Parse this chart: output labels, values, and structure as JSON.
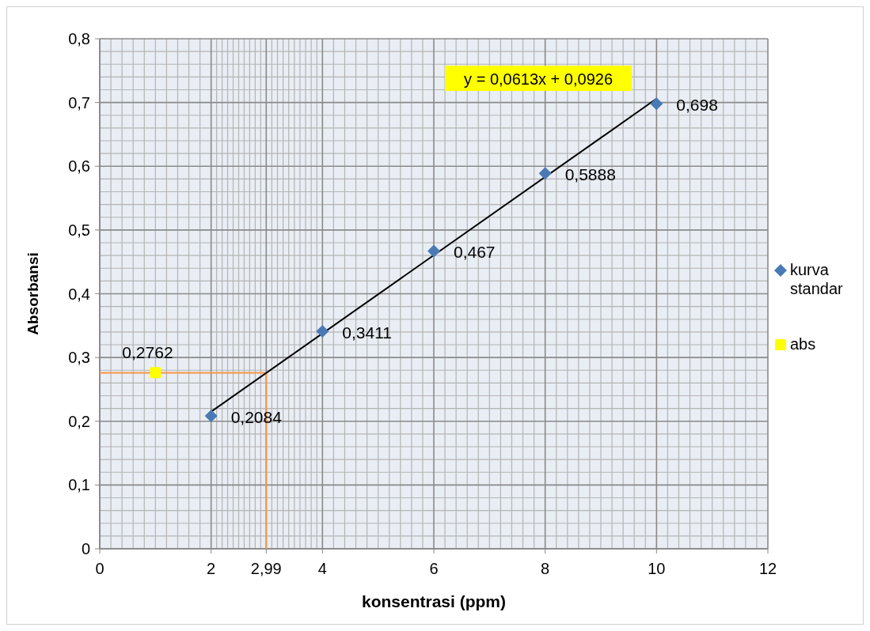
{
  "chart_data": {
    "type": "scatter",
    "xlabel": "konsentrasi (ppm)",
    "ylabel": "Absorbansi",
    "xlim": [
      0,
      12
    ],
    "xticks": [
      0,
      2,
      {
        "value": 2.99,
        "label": "2,99"
      },
      4,
      6,
      8,
      10,
      12
    ],
    "ylim": [
      0,
      0.8
    ],
    "yticks": [
      {
        "value": 0,
        "label": "0"
      },
      {
        "value": 0.1,
        "label": "0,1"
      },
      {
        "value": 0.2,
        "label": "0,2"
      },
      {
        "value": 0.3,
        "label": "0,3"
      },
      {
        "value": 0.4,
        "label": "0,4"
      },
      {
        "value": 0.5,
        "label": "0,5"
      },
      {
        "value": 0.6,
        "label": "0,6"
      },
      {
        "value": 0.7,
        "label": "0,7"
      },
      {
        "value": 0.8,
        "label": "0,8"
      }
    ],
    "grid": true,
    "legend": "right",
    "annotations": [
      "y = 0,0613x + 0,0926"
    ],
    "series": [
      {
        "type": "line",
        "color": "#f79646",
        "x": [
          0,
          2.99,
          2.99
        ],
        "values": [
          0.276,
          0.276,
          0
        ],
        "marker": "none"
      },
      {
        "type": "line",
        "color": "#000000",
        "x": [
          2,
          10
        ],
        "values": [
          0.215,
          0.706
        ],
        "marker": "none"
      },
      {
        "name": "kurva standar",
        "color": "#4a7ab5",
        "marker": "diamond",
        "x": [
          2,
          4,
          6,
          8,
          10
        ],
        "values": [
          0.2084,
          0.3411,
          0.467,
          0.5888,
          0.698
        ],
        "value_labels": [
          "0,2084",
          "0,3411",
          "0,467",
          "0,5888",
          "0,698"
        ]
      },
      {
        "name": "abs",
        "color": "#ffff00",
        "marker": "square",
        "x": [
          1
        ],
        "values": [
          0.2762
        ],
        "value_labels": [
          "0,2762"
        ]
      }
    ]
  }
}
